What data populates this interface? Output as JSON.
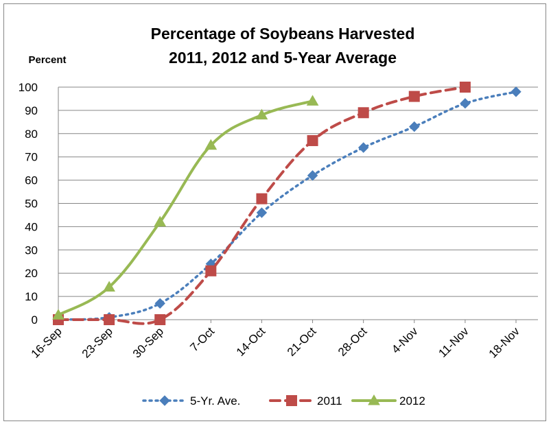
{
  "chart_data": {
    "type": "line",
    "title": "Percentage of Soybeans Harvested",
    "subtitle": "2011, 2012 and 5-Year Average",
    "ylabel": "Percent",
    "xlabel": "",
    "categories": [
      "16-Sep",
      "23-Sep",
      "30-Sep",
      "7-Oct",
      "14-Oct",
      "21-Oct",
      "28-Oct",
      "4-Nov",
      "11-Nov",
      "18-Nov"
    ],
    "yticks": [
      0,
      10,
      20,
      30,
      40,
      50,
      60,
      70,
      80,
      90,
      100
    ],
    "ylim": [
      0,
      100
    ],
    "grid": "horizontal",
    "legend_position": "bottom",
    "series": [
      {
        "name": "5-Yr. Ave.",
        "color": "#4a7ebb",
        "line_style": "dotted",
        "marker": "diamond",
        "values": [
          0,
          1,
          7,
          24,
          46,
          62,
          74,
          83,
          93,
          98
        ]
      },
      {
        "name": "2011",
        "color": "#be4b48",
        "line_style": "dashed",
        "marker": "square",
        "values": [
          0,
          0,
          0,
          21,
          52,
          77,
          89,
          96,
          100,
          null
        ]
      },
      {
        "name": "2012",
        "color": "#98b954",
        "line_style": "solid",
        "marker": "triangle",
        "values": [
          2,
          14,
          42,
          75,
          88,
          94,
          null,
          null,
          null,
          null
        ]
      }
    ]
  }
}
